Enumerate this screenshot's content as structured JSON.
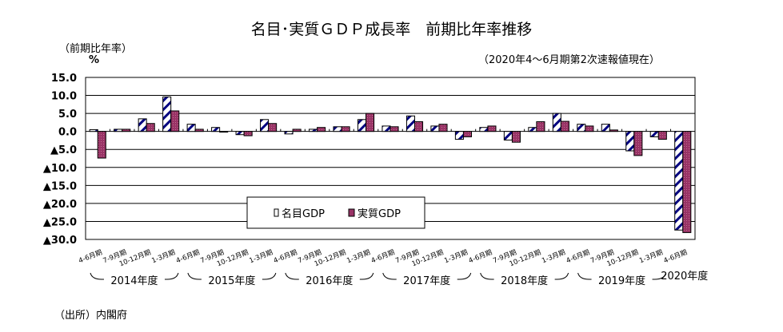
{
  "chart_data": {
    "type": "bar",
    "title": "名目･実質ＧＤＰ成長率　前期比年率推移",
    "ylabel": "（前期比年率）",
    "yunit": "%",
    "note": "（2020年4～6月期第2次速報値現在）",
    "source": "（出所）内閣府",
    "ylim": [
      -30,
      15
    ],
    "yticks": [
      15,
      10,
      5,
      0,
      -5,
      -10,
      -15,
      -20,
      -25,
      -30
    ],
    "ytick_labels": [
      "15.0",
      "10.0",
      "5.0",
      "0.0",
      "▲5.0",
      "▲10.0",
      "▲15.0",
      "▲20.0",
      "▲25.0",
      "▲30.0"
    ],
    "categories": [
      "4-6月期",
      "7-9月期",
      "10-12月期",
      "1-3月期",
      "4-6月期",
      "7-9月期",
      "10-12月期",
      "1-3月期",
      "4-6月期",
      "7-9月期",
      "10-12月期",
      "1-3月期",
      "4-6月期",
      "7-9月期",
      "10-12月期",
      "1-3月期",
      "4-6月期",
      "7-9月期",
      "10-12月期",
      "1-3月期",
      "4-6月期",
      "7-9月期",
      "10-12月期",
      "1-3月期",
      "4-6月期"
    ],
    "fiscal_years": [
      "2014年度",
      "2015年度",
      "2016年度",
      "2017年度",
      "2018年度",
      "2019年度",
      "2020年度"
    ],
    "series": [
      {
        "name": "名目GDP",
        "color": "#000080",
        "values": [
          0.5,
          0.6,
          3.5,
          9.6,
          2.0,
          1.1,
          -0.9,
          3.3,
          -0.7,
          0.6,
          1.3,
          3.3,
          1.5,
          4.3,
          1.5,
          -2.2,
          1.1,
          -2.4,
          1.1,
          5.0,
          2.0,
          2.0,
          -5.4,
          -1.5,
          -27.4
        ]
      },
      {
        "name": "実質GDP",
        "color": "#993366",
        "values": [
          -7.4,
          0.6,
          2.2,
          5.7,
          0.6,
          -0.2,
          -1.2,
          2.2,
          0.6,
          1.1,
          1.3,
          5.0,
          1.3,
          2.7,
          2.0,
          -1.5,
          1.5,
          -3.0,
          2.7,
          2.8,
          1.5,
          0.4,
          -6.7,
          -2.2,
          -28.1
        ]
      }
    ],
    "grid": true,
    "legend": "bottom-center"
  }
}
